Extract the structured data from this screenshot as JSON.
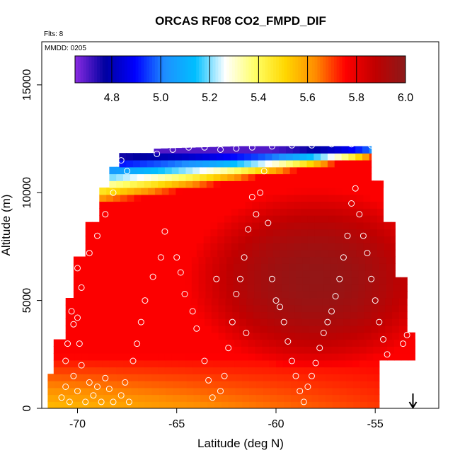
{
  "chart_data": {
    "type": "heatmap",
    "title": "ORCAS RF08 CO2_FMPD_DIF",
    "flights_note": "Flts: 8",
    "date_note": "MMDD: 0205",
    "xlabel": "Latitude (deg N)",
    "ylabel": "Altitude (m)",
    "xlim": [
      -71.8,
      -51.8
    ],
    "ylim": [
      0,
      17000
    ],
    "x_ticks": [
      -70,
      -65,
      -60,
      -55
    ],
    "x_tick_labels": [
      "-70",
      "-65",
      "-60",
      "-55"
    ],
    "y_ticks": [
      0,
      5000,
      10000,
      15000
    ],
    "y_tick_labels": [
      "0",
      "5000",
      "10000",
      "15000"
    ],
    "colorbar": {
      "min": 4.65,
      "max": 6.0,
      "ticks": [
        4.8,
        5.0,
        5.2,
        5.4,
        5.6,
        5.8,
        6.0
      ],
      "tick_labels": [
        "4.8",
        "5.0",
        "5.2",
        "5.4",
        "5.6",
        "5.8",
        "6.0"
      ],
      "colors": [
        "#8a2be2",
        "#0000a0",
        "#0000ff",
        "#1e90ff",
        "#00bfff",
        "#ffffff",
        "#ffff66",
        "#ffd700",
        "#ff8c00",
        "#ff0000",
        "#c00000",
        "#8b1a1a"
      ]
    },
    "field_model": {
      "top_left_altitude": 11700,
      "top_right_altitude": 12200,
      "bottom_left_value": 5.55,
      "bottom_right_value": 5.72,
      "core_value": 5.98,
      "core_center": [
        -58,
        6000
      ],
      "low_tongue_altitude_left": 9000,
      "low_tongue_altitude_right": 12000
    },
    "sample_points": [
      [
        -70.8,
        500
      ],
      [
        -70.6,
        1000
      ],
      [
        -70.4,
        300
      ],
      [
        -70.2,
        1500
      ],
      [
        -70.0,
        800
      ],
      [
        -69.8,
        2000
      ],
      [
        -69.6,
        300
      ],
      [
        -69.4,
        1200
      ],
      [
        -69.2,
        600
      ],
      [
        -69.0,
        1000
      ],
      [
        -68.8,
        300
      ],
      [
        -68.6,
        1400
      ],
      [
        -68.4,
        900
      ],
      [
        -68.2,
        300
      ],
      [
        -70.5,
        3000
      ],
      [
        -70.2,
        3900
      ],
      [
        -70.0,
        4200
      ],
      [
        -70.3,
        4500
      ],
      [
        -69.9,
        3000
      ],
      [
        -70.6,
        2200
      ],
      [
        -67.8,
        600
      ],
      [
        -67.6,
        1200
      ],
      [
        -67.4,
        300
      ],
      [
        -67.2,
        2200
      ],
      [
        -67.0,
        3000
      ],
      [
        -66.8,
        4000
      ],
      [
        -66.6,
        5000
      ],
      [
        -66.2,
        6100
      ],
      [
        -65.8,
        7000
      ],
      [
        -65.6,
        8200
      ],
      [
        -65.0,
        7000
      ],
      [
        -64.8,
        6300
      ],
      [
        -64.6,
        5300
      ],
      [
        -64.2,
        4500
      ],
      [
        -64.0,
        3700
      ],
      [
        -63.6,
        2200
      ],
      [
        -63.4,
        1300
      ],
      [
        -63.2,
        500
      ],
      [
        -62.8,
        800
      ],
      [
        -62.6,
        1500
      ],
      [
        -62.4,
        2800
      ],
      [
        -62.2,
        4000
      ],
      [
        -62.0,
        5300
      ],
      [
        -61.8,
        6000
      ],
      [
        -61.6,
        7000
      ],
      [
        -61.4,
        8300
      ],
      [
        -61.2,
        9800
      ],
      [
        -61.0,
        9000
      ],
      [
        -60.8,
        10000
      ],
      [
        -60.6,
        11000
      ],
      [
        -60.4,
        8600
      ],
      [
        -60.2,
        6000
      ],
      [
        -60.0,
        5000
      ],
      [
        -59.8,
        4700
      ],
      [
        -59.6,
        4000
      ],
      [
        -59.4,
        3100
      ],
      [
        -59.2,
        2200
      ],
      [
        -59.0,
        1500
      ],
      [
        -58.8,
        800
      ],
      [
        -58.6,
        300
      ],
      [
        -58.4,
        1000
      ],
      [
        -58.2,
        1500
      ],
      [
        -58.0,
        2100
      ],
      [
        -57.8,
        2800
      ],
      [
        -57.6,
        3500
      ],
      [
        -57.4,
        4000
      ],
      [
        -57.2,
        4500
      ],
      [
        -57.0,
        5200
      ],
      [
        -56.8,
        6000
      ],
      [
        -56.6,
        7000
      ],
      [
        -56.4,
        8000
      ],
      [
        -56.2,
        9500
      ],
      [
        -56.0,
        10200
      ],
      [
        -55.8,
        9000
      ],
      [
        -55.6,
        8000
      ],
      [
        -55.4,
        7200
      ],
      [
        -55.2,
        6000
      ],
      [
        -55.0,
        5000
      ],
      [
        -54.8,
        4000
      ],
      [
        -54.6,
        3200
      ],
      [
        -54.4,
        2500
      ],
      [
        -54.2,
        1500
      ],
      [
        -54.0,
        800
      ],
      [
        -53.8,
        2000
      ],
      [
        -53.6,
        3000
      ],
      [
        -53.4,
        3400
      ],
      [
        -53.2,
        4000
      ],
      [
        -53.0,
        5000
      ],
      [
        -53.2,
        6000
      ],
      [
        -53.4,
        7000
      ],
      [
        -53.6,
        8000
      ],
      [
        -53.8,
        9000
      ],
      [
        -54.0,
        10000
      ],
      [
        -66.0,
        11800
      ],
      [
        -65.2,
        12000
      ],
      [
        -64.4,
        12100
      ],
      [
        -63.6,
        12100
      ],
      [
        -62.8,
        12000
      ],
      [
        -62.0,
        12050
      ],
      [
        -61.2,
        12100
      ],
      [
        -60.2,
        12150
      ],
      [
        -59.2,
        12200
      ],
      [
        -58.2,
        12200
      ],
      [
        -57.2,
        12250
      ],
      [
        -56.2,
        12250
      ],
      [
        -55.2,
        12200
      ],
      [
        -54.8,
        12000
      ],
      [
        -67.8,
        11500
      ],
      [
        -67.5,
        11000
      ],
      [
        -68.2,
        10000
      ],
      [
        -68.6,
        9000
      ],
      [
        -69.0,
        8000
      ],
      [
        -69.4,
        7200
      ],
      [
        -70.0,
        6500
      ],
      [
        -70.4,
        5300
      ],
      [
        -69.8,
        5600
      ],
      [
        -61.5,
        3500
      ],
      [
        -63.0,
        6000
      ]
    ],
    "arrow_x": -53.1
  }
}
